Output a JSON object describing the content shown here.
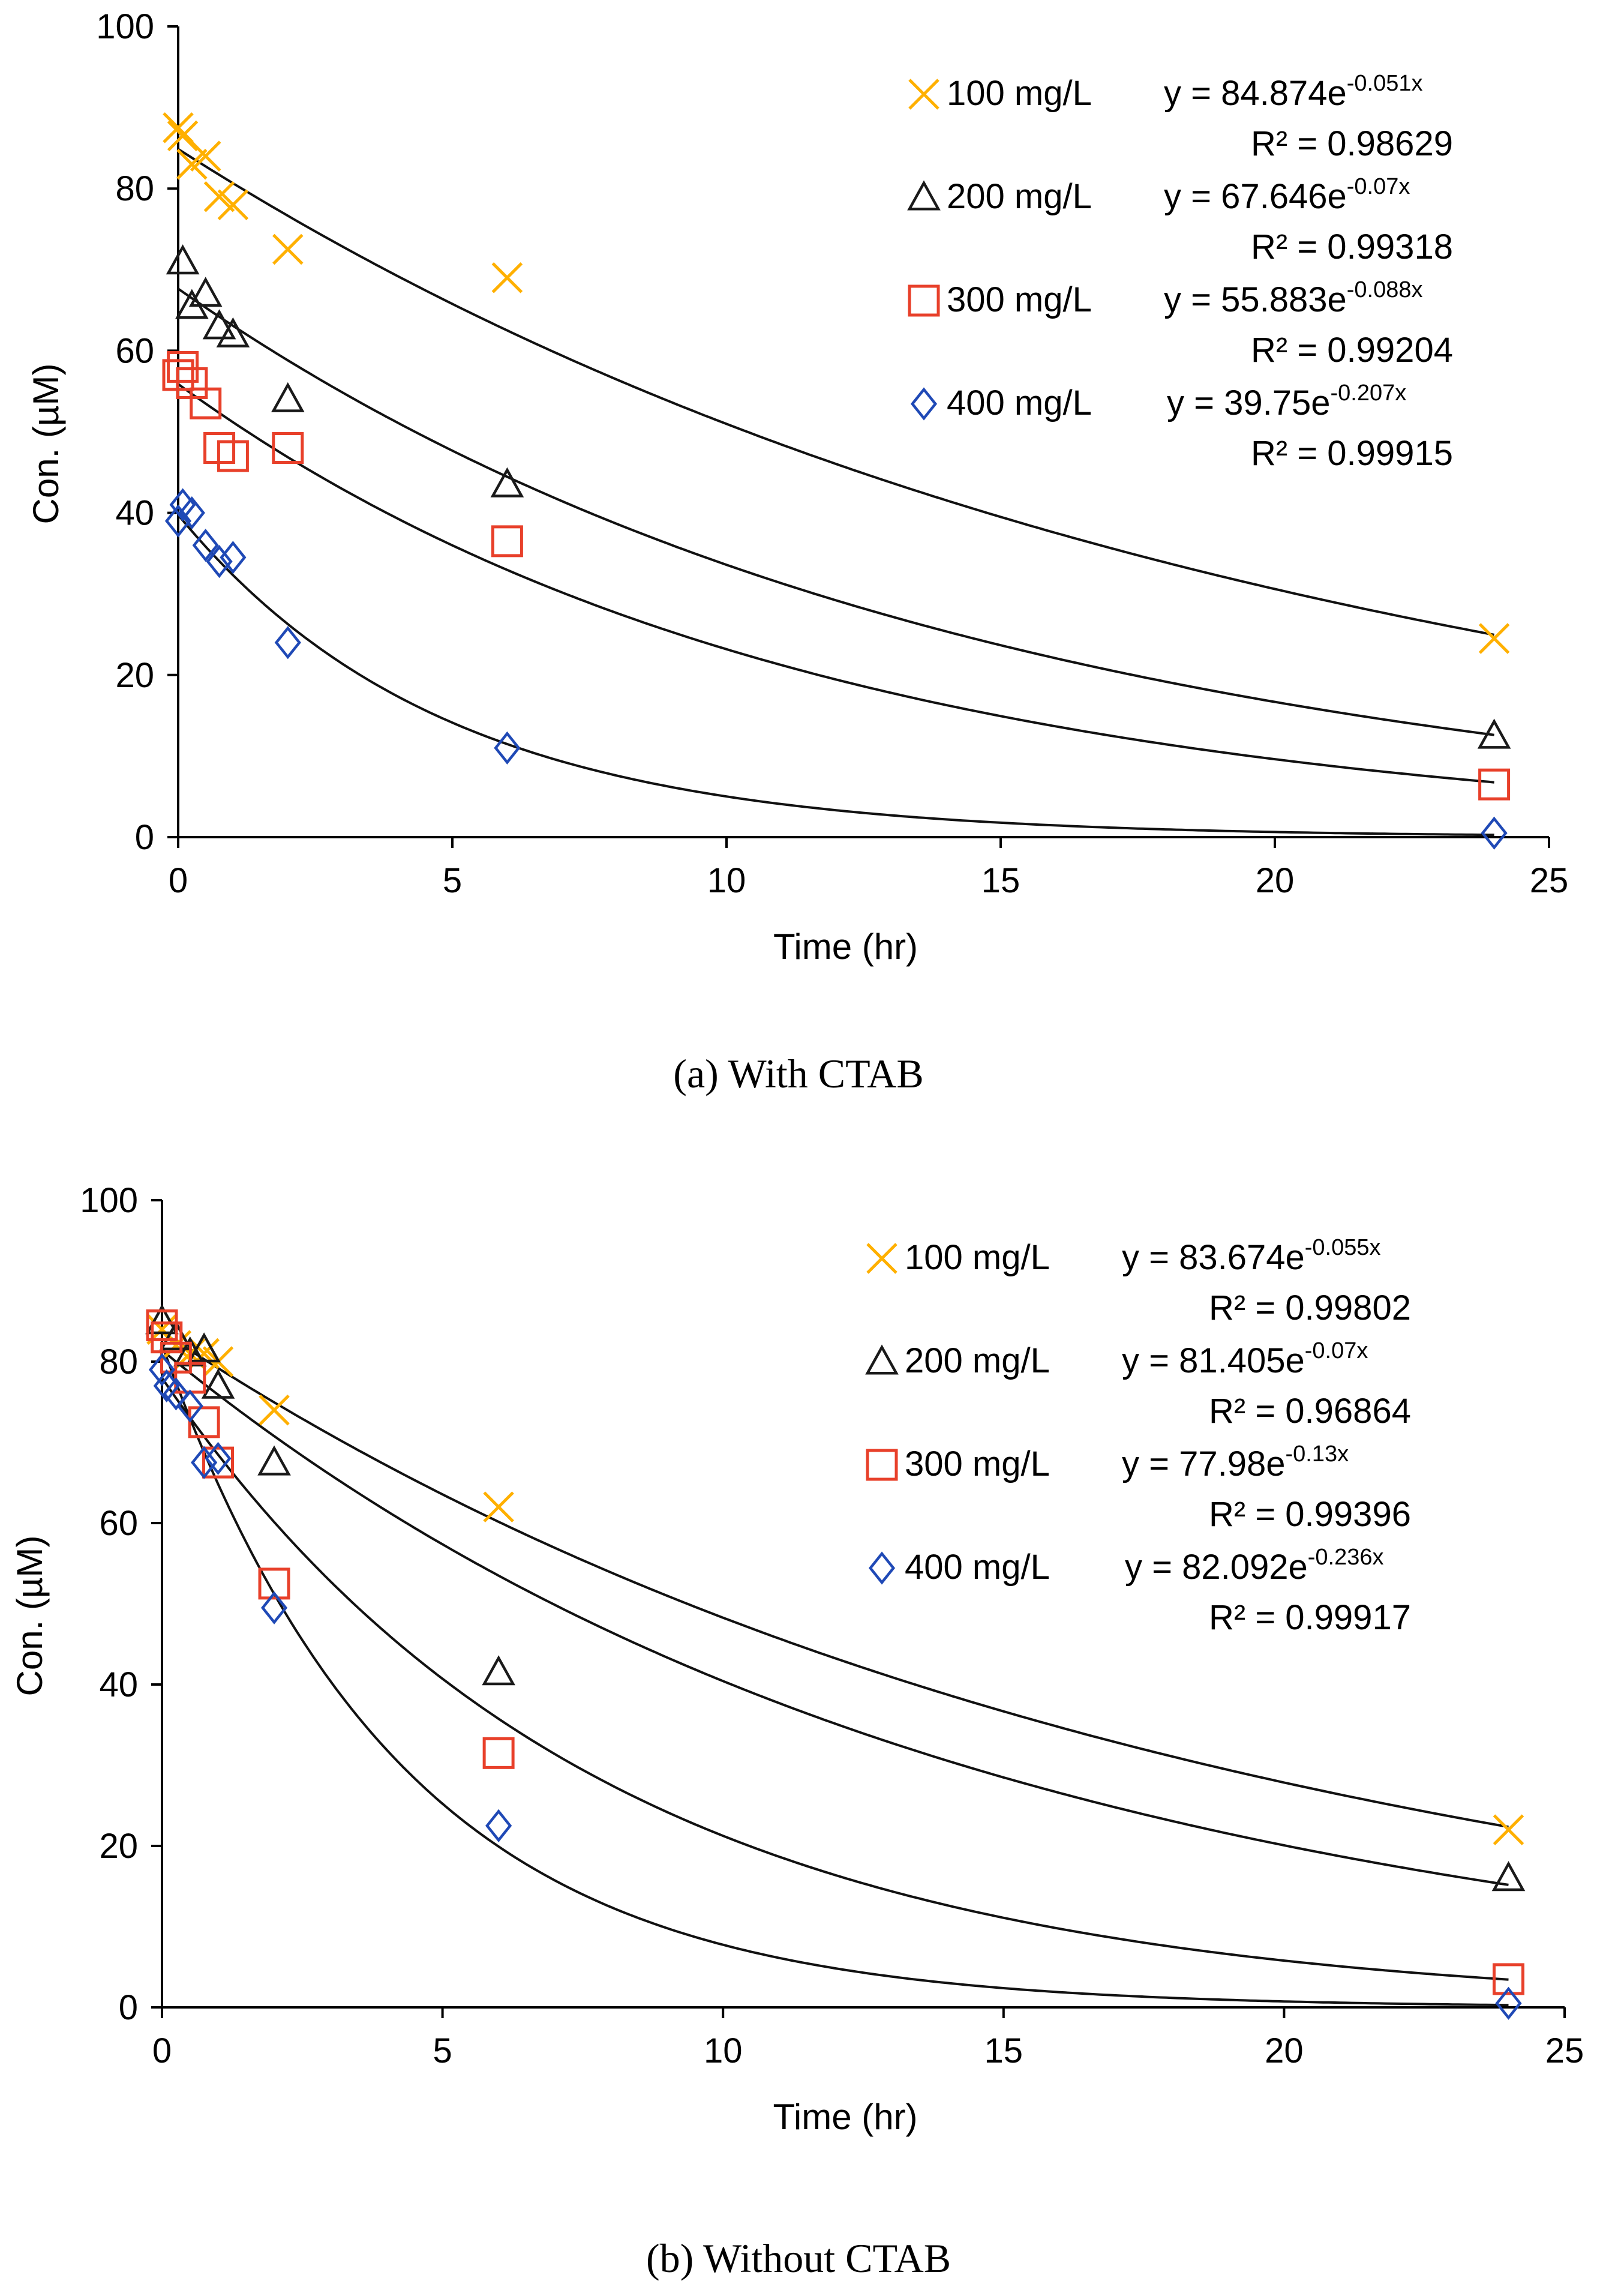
{
  "chart_data": [
    {
      "type": "scatter",
      "title": "",
      "caption": "(a) With CTAB",
      "xlabel": "Time (hr)",
      "ylabel": "Con. (µM)",
      "xlim": [
        0,
        25
      ],
      "ylim": [
        0,
        100
      ],
      "x_ticks": [
        "0",
        "5",
        "10",
        "15",
        "20",
        "25"
      ],
      "y_ticks": [
        "0",
        "20",
        "40",
        "60",
        "80",
        "100"
      ],
      "grid": false,
      "legend_position": "top-right",
      "series": [
        {
          "name": "100 mg/L",
          "marker": "x",
          "color": "#FFB000",
          "equation": "y = 84.874e",
          "exponent": "-0.051x",
          "r2_text": "R² = 0.98629",
          "fit": {
            "a": 84.874,
            "b": 0.051
          },
          "points": [
            [
              0,
              87.5
            ],
            [
              0.083,
              86.5
            ],
            [
              0.25,
              83
            ],
            [
              0.5,
              84
            ],
            [
              0.75,
              79
            ],
            [
              1,
              78
            ],
            [
              2,
              72.5
            ],
            [
              6,
              69
            ],
            [
              24,
              24.5
            ]
          ]
        },
        {
          "name": "200 mg/L",
          "marker": "triangle",
          "color": "#1A1A1A",
          "equation": "y = 67.646e",
          "exponent": "-0.07x",
          "r2_text": "R² = 0.99318",
          "fit": {
            "a": 67.646,
            "b": 0.07
          },
          "points": [
            [
              0.083,
              71
            ],
            [
              0.25,
              65.5
            ],
            [
              0.5,
              67
            ],
            [
              0.75,
              63
            ],
            [
              1,
              62
            ],
            [
              2,
              54
            ],
            [
              6,
              43.5
            ],
            [
              24,
              12.5
            ]
          ]
        },
        {
          "name": "300 mg/L",
          "marker": "square",
          "color": "#E8402A",
          "equation": "y = 55.883e",
          "exponent": "-0.088x",
          "r2_text": "R² = 0.99204",
          "fit": {
            "a": 55.883,
            "b": 0.088
          },
          "points": [
            [
              0,
              57
            ],
            [
              0.083,
              58
            ],
            [
              0.25,
              56
            ],
            [
              0.5,
              53.5
            ],
            [
              0.75,
              48
            ],
            [
              1,
              47
            ],
            [
              2,
              48
            ],
            [
              6,
              36.5
            ],
            [
              24,
              6.5
            ]
          ]
        },
        {
          "name": "400 mg/L",
          "marker": "diamond",
          "color": "#1F49B6",
          "equation": "y = 39.75e",
          "exponent": "-0.207x",
          "r2_text": "R² = 0.99915",
          "fit": {
            "a": 39.75,
            "b": 0.207
          },
          "points": [
            [
              0,
              39
            ],
            [
              0.083,
              41
            ],
            [
              0.25,
              40
            ],
            [
              0.5,
              36
            ],
            [
              0.75,
              34
            ],
            [
              1,
              34.5
            ],
            [
              2,
              24
            ],
            [
              6,
              11
            ],
            [
              24,
              0.5
            ]
          ]
        }
      ]
    },
    {
      "type": "scatter",
      "title": "",
      "caption": "(b) Without CTAB",
      "xlabel": "Time (hr)",
      "ylabel": "Con. (µM)",
      "xlim": [
        0,
        25
      ],
      "ylim": [
        0,
        100
      ],
      "x_ticks": [
        "0",
        "5",
        "10",
        "15",
        "20",
        "25"
      ],
      "y_ticks": [
        "0",
        "20",
        "40",
        "60",
        "80",
        "100"
      ],
      "grid": false,
      "legend_position": "top-right",
      "series": [
        {
          "name": "100 mg/L",
          "marker": "x",
          "color": "#FFB000",
          "equation": "y = 83.674e",
          "exponent": "-0.055x",
          "r2_text": "R² = 0.99802",
          "fit": {
            "a": 83.674,
            "b": 0.055
          },
          "points": [
            [
              0,
              84
            ],
            [
              0.25,
              82
            ],
            [
              0.5,
              81
            ],
            [
              0.75,
              81
            ],
            [
              1,
              80
            ],
            [
              2,
              74
            ],
            [
              6,
              62
            ],
            [
              24,
              22
            ]
          ]
        },
        {
          "name": "200 mg/L",
          "marker": "triangle",
          "color": "#1A1A1A",
          "equation": "y = 81.405e",
          "exponent": "-0.07x",
          "r2_text": "R² = 0.96864",
          "fit": {
            "a": 81.405,
            "b": 0.07
          },
          "points": [
            [
              0,
              85
            ],
            [
              0.25,
              83
            ],
            [
              0.5,
              81
            ],
            [
              0.75,
              81.5
            ],
            [
              1,
              77
            ],
            [
              2,
              67.5
            ],
            [
              6,
              41.5
            ],
            [
              24,
              16
            ]
          ]
        },
        {
          "name": "300 mg/L",
          "marker": "square",
          "color": "#E8402A",
          "equation": "y = 77.98e",
          "exponent": "-0.13x",
          "r2_text": "R² = 0.99396",
          "fit": {
            "a": 77.98,
            "b": 0.13
          },
          "points": [
            [
              0,
              84.5
            ],
            [
              0.083,
              83
            ],
            [
              0.25,
              80.5
            ],
            [
              0.5,
              78
            ],
            [
              0.75,
              72.5
            ],
            [
              1,
              67.5
            ],
            [
              2,
              52.5
            ],
            [
              6,
              31.5
            ],
            [
              24,
              3.5
            ]
          ]
        },
        {
          "name": "400 mg/L",
          "marker": "diamond",
          "color": "#1F49B6",
          "equation": "y = 82.092e",
          "exponent": "-0.236x",
          "r2_text": "R² = 0.99917",
          "fit": {
            "a": 82.092,
            "b": 0.236
          },
          "points": [
            [
              0,
              79
            ],
            [
              0.083,
              77
            ],
            [
              0.25,
              76
            ],
            [
              0.5,
              74.5
            ],
            [
              0.75,
              67.5
            ],
            [
              1,
              68
            ],
            [
              2,
              49.5
            ],
            [
              6,
              22.5
            ],
            [
              24,
              0.5
            ]
          ]
        }
      ]
    }
  ]
}
